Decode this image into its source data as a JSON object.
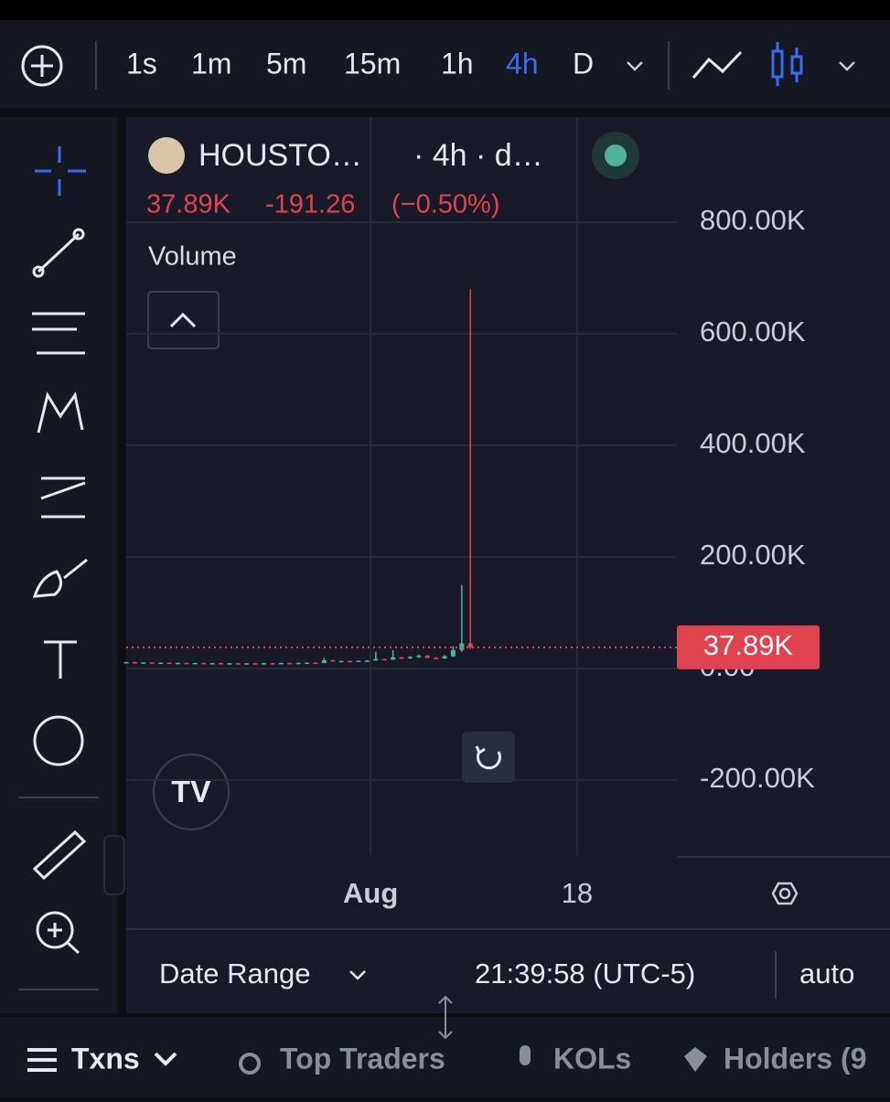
{
  "toolbar": {
    "intervals": [
      "1s",
      "1m",
      "5m",
      "15m",
      "1h",
      "4h",
      "D"
    ],
    "active_index": 5
  },
  "header": {
    "symbol": "HOUSTO…",
    "meta": "· 4h · d…",
    "last": "37.89K",
    "change": "-191.26",
    "change_pct": "(−0.50%)",
    "indicator": "Volume"
  },
  "chart_data": {
    "type": "candlestick",
    "candles": [
      [
        11,
        12,
        10,
        11.5
      ],
      [
        11.5,
        12,
        10.5,
        10.8
      ],
      [
        10.8,
        11.5,
        10,
        11
      ],
      [
        11,
        11.2,
        9.8,
        10
      ],
      [
        10,
        10.8,
        9.5,
        10.5
      ],
      [
        10.5,
        11,
        9.8,
        9.9
      ],
      [
        9.9,
        10.5,
        9,
        10.2
      ],
      [
        10.2,
        10.6,
        9.2,
        9.5
      ],
      [
        9.5,
        10.2,
        9,
        10
      ],
      [
        10,
        10.4,
        9.1,
        9.3
      ],
      [
        9.3,
        10,
        8.8,
        9.8
      ],
      [
        9.8,
        10.2,
        9,
        9.2
      ],
      [
        9.2,
        9.9,
        8.6,
        9.6
      ],
      [
        9.6,
        10,
        8.9,
        9
      ],
      [
        9,
        9.8,
        8.5,
        9.5
      ],
      [
        9.5,
        10,
        8.8,
        9.1
      ],
      [
        9.1,
        10,
        8.7,
        9.7
      ],
      [
        9.7,
        10.1,
        9,
        9.4
      ],
      [
        9.4,
        10.2,
        8.9,
        10
      ],
      [
        10,
        10.5,
        9.2,
        9.6
      ],
      [
        9.6,
        10.5,
        9,
        10.2
      ],
      [
        10.2,
        11,
        9.8,
        10.6
      ],
      [
        10.6,
        11,
        9.5,
        9.8
      ],
      [
        9.8,
        19,
        9.6,
        15
      ],
      [
        15,
        15.5,
        12,
        13
      ],
      [
        13,
        14,
        12,
        13.5
      ],
      [
        13.5,
        14,
        12.5,
        13
      ],
      [
        13,
        14.5,
        12.8,
        14
      ],
      [
        14,
        15,
        13.5,
        14.2
      ],
      [
        14.2,
        30,
        14,
        17
      ],
      [
        17,
        18,
        15,
        16
      ],
      [
        16,
        33,
        15.5,
        20
      ],
      [
        20,
        21,
        18,
        19
      ],
      [
        19,
        22,
        17,
        21
      ],
      [
        21,
        25,
        19,
        23
      ],
      [
        23,
        24,
        18,
        19
      ],
      [
        19,
        21,
        17,
        18
      ],
      [
        18,
        24,
        17.5,
        22
      ],
      [
        22,
        40,
        21,
        33
      ],
      [
        33,
        150,
        30,
        45
      ],
      [
        45,
        680,
        35,
        37.89
      ]
    ],
    "up_color": "#4fb39a",
    "down_color": "#e0434f",
    "xlim": [
      0,
      64
    ],
    "xticks": [
      {
        "value": 28.4,
        "label": "Aug"
      },
      {
        "value": 52.4,
        "label": "18"
      }
    ],
    "ylim": [
      -334.4,
      988.5
    ],
    "yticks": [
      {
        "value": 800,
        "label": "800.00K"
      },
      {
        "value": 600,
        "label": "600.00K"
      },
      {
        "value": 400,
        "label": "400.00K"
      },
      {
        "value": 200,
        "label": "200.00K"
      },
      {
        "value": 0,
        "label": "0.00"
      },
      {
        "value": -200,
        "label": "-200.00K"
      }
    ],
    "last_price": {
      "value": 37.89,
      "label": "37.89K"
    },
    "grid": true
  },
  "footer": {
    "date_range": "Date Range",
    "time": "21:39:58 (UTC-5)",
    "scale": "auto"
  },
  "tabs": [
    "Txns",
    "Top Traders",
    "KOLs",
    "Holders (9"
  ]
}
